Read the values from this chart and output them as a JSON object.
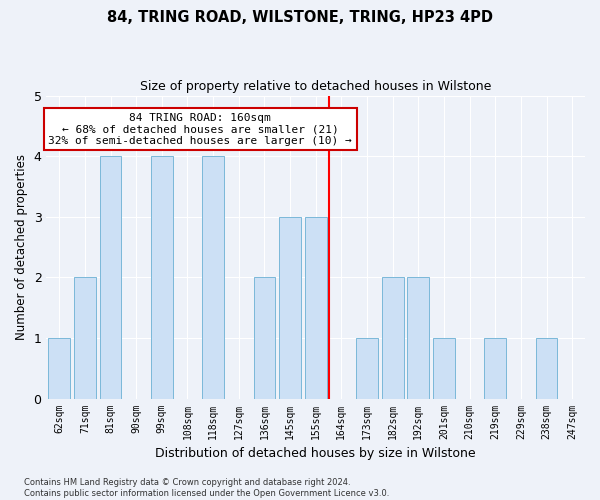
{
  "title": "84, TRING ROAD, WILSTONE, TRING, HP23 4PD",
  "subtitle": "Size of property relative to detached houses in Wilstone",
  "xlabel": "Distribution of detached houses by size in Wilstone",
  "ylabel": "Number of detached properties",
  "categories": [
    "62sqm",
    "71sqm",
    "81sqm",
    "90sqm",
    "99sqm",
    "108sqm",
    "118sqm",
    "127sqm",
    "136sqm",
    "145sqm",
    "155sqm",
    "164sqm",
    "173sqm",
    "182sqm",
    "192sqm",
    "201sqm",
    "210sqm",
    "219sqm",
    "229sqm",
    "238sqm",
    "247sqm"
  ],
  "values": [
    1,
    2,
    4,
    0,
    4,
    0,
    4,
    0,
    2,
    3,
    3,
    0,
    1,
    2,
    2,
    1,
    0,
    1,
    0,
    1,
    0
  ],
  "bar_color": "#cce0f5",
  "bar_edgecolor": "#7ab8d9",
  "annotation_text": "84 TRING ROAD: 160sqm\n← 68% of detached houses are smaller (21)\n32% of semi-detached houses are larger (10) →",
  "annotation_box_color": "#ffffff",
  "annotation_box_edgecolor": "#cc0000",
  "ylim": [
    0,
    5
  ],
  "yticks": [
    0,
    1,
    2,
    3,
    4,
    5
  ],
  "background_color": "#eef2f9",
  "grid_color": "#ffffff",
  "footer_line1": "Contains HM Land Registry data © Crown copyright and database right 2024.",
  "footer_line2": "Contains public sector information licensed under the Open Government Licence v3.0."
}
